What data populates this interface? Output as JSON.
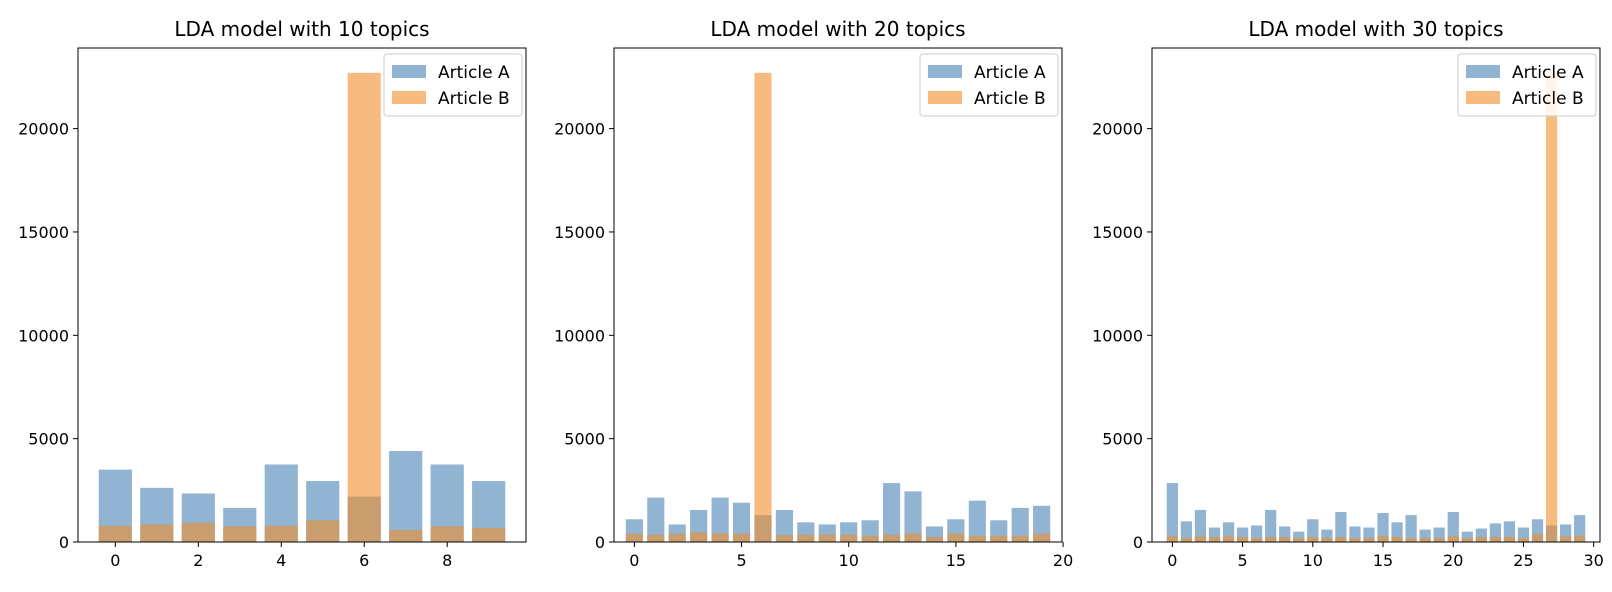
{
  "colors": {
    "article_a": "#4682b4",
    "article_b": "#f28e2b",
    "bar_alpha": 0.6,
    "axis": "#000000",
    "legend_edge": "#cccccc"
  },
  "chart_data": [
    {
      "type": "bar",
      "title": "LDA model with 10 topics",
      "xlabel": "",
      "ylabel": "",
      "x": [
        0,
        1,
        2,
        3,
        4,
        5,
        6,
        7,
        8,
        9
      ],
      "series": [
        {
          "name": "Article A",
          "values": [
            3500,
            2620,
            2350,
            1650,
            3750,
            2950,
            2200,
            4400,
            3750,
            2950
          ]
        },
        {
          "name": "Article B",
          "values": [
            780,
            850,
            930,
            760,
            780,
            1050,
            22700,
            580,
            760,
            680
          ]
        }
      ],
      "xlim": [
        -0.9,
        9.9
      ],
      "ylim": [
        0,
        23900
      ],
      "xticks": [
        0,
        2,
        4,
        6,
        8
      ],
      "xtick_labels": [
        "0",
        "2",
        "4",
        "6",
        "8"
      ],
      "yticks": [
        0,
        5000,
        10000,
        15000,
        20000
      ],
      "ytick_labels": [
        "0",
        "5000",
        "10000",
        "15000",
        "20000"
      ],
      "legend": "top-right",
      "grid": false
    },
    {
      "type": "bar",
      "title": "LDA model with 20 topics",
      "xlabel": "",
      "ylabel": "",
      "x": [
        0,
        1,
        2,
        3,
        4,
        5,
        6,
        7,
        8,
        9,
        10,
        11,
        12,
        13,
        14,
        15,
        16,
        17,
        18,
        19
      ],
      "series": [
        {
          "name": "Article A",
          "values": [
            1100,
            2150,
            850,
            1550,
            2150,
            1900,
            1300,
            1550,
            950,
            850,
            950,
            1050,
            2850,
            2450,
            750,
            1100,
            2000,
            1050,
            1650,
            1750
          ]
        },
        {
          "name": "Article B",
          "values": [
            400,
            350,
            400,
            480,
            420,
            400,
            22700,
            330,
            350,
            350,
            350,
            300,
            350,
            400,
            250,
            400,
            300,
            300,
            300,
            400
          ]
        }
      ],
      "xlim": [
        -0.95,
        19.95
      ],
      "ylim": [
        0,
        23900
      ],
      "xticks": [
        0,
        5,
        10,
        15,
        20
      ],
      "xtick_labels": [
        "0",
        "5",
        "10",
        "15",
        "20"
      ],
      "yticks": [
        0,
        5000,
        10000,
        15000,
        20000
      ],
      "ytick_labels": [
        "0",
        "5000",
        "10000",
        "15000",
        "20000"
      ],
      "legend": "top-right",
      "grid": false
    },
    {
      "type": "bar",
      "title": "LDA model with 30 topics",
      "xlabel": "",
      "ylabel": "",
      "x": [
        0,
        1,
        2,
        3,
        4,
        5,
        6,
        7,
        8,
        9,
        10,
        11,
        12,
        13,
        14,
        15,
        16,
        17,
        18,
        19,
        20,
        21,
        22,
        23,
        24,
        25,
        26,
        27,
        28,
        29
      ],
      "series": [
        {
          "name": "Article A",
          "values": [
            2850,
            1000,
            1550,
            700,
            950,
            700,
            800,
            1550,
            750,
            500,
            1100,
            600,
            1450,
            750,
            700,
            1400,
            950,
            1300,
            600,
            700,
            1450,
            500,
            650,
            900,
            1000,
            700,
            1100,
            800,
            850,
            1300
          ]
        },
        {
          "name": "Article B",
          "values": [
            300,
            200,
            300,
            250,
            300,
            250,
            200,
            250,
            250,
            200,
            250,
            200,
            250,
            200,
            200,
            300,
            250,
            200,
            200,
            200,
            300,
            200,
            250,
            250,
            250,
            200,
            400,
            22700,
            300,
            300
          ]
        }
      ],
      "xlim": [
        -1.45,
        30.45
      ],
      "ylim": [
        0,
        23900
      ],
      "xticks": [
        0,
        5,
        10,
        15,
        20,
        25,
        30
      ],
      "xtick_labels": [
        "0",
        "5",
        "10",
        "15",
        "20",
        "25",
        "30"
      ],
      "yticks": [
        0,
        5000,
        10000,
        15000,
        20000
      ],
      "ytick_labels": [
        "0",
        "5000",
        "10000",
        "15000",
        "20000"
      ],
      "legend": "top-right",
      "grid": false
    }
  ]
}
